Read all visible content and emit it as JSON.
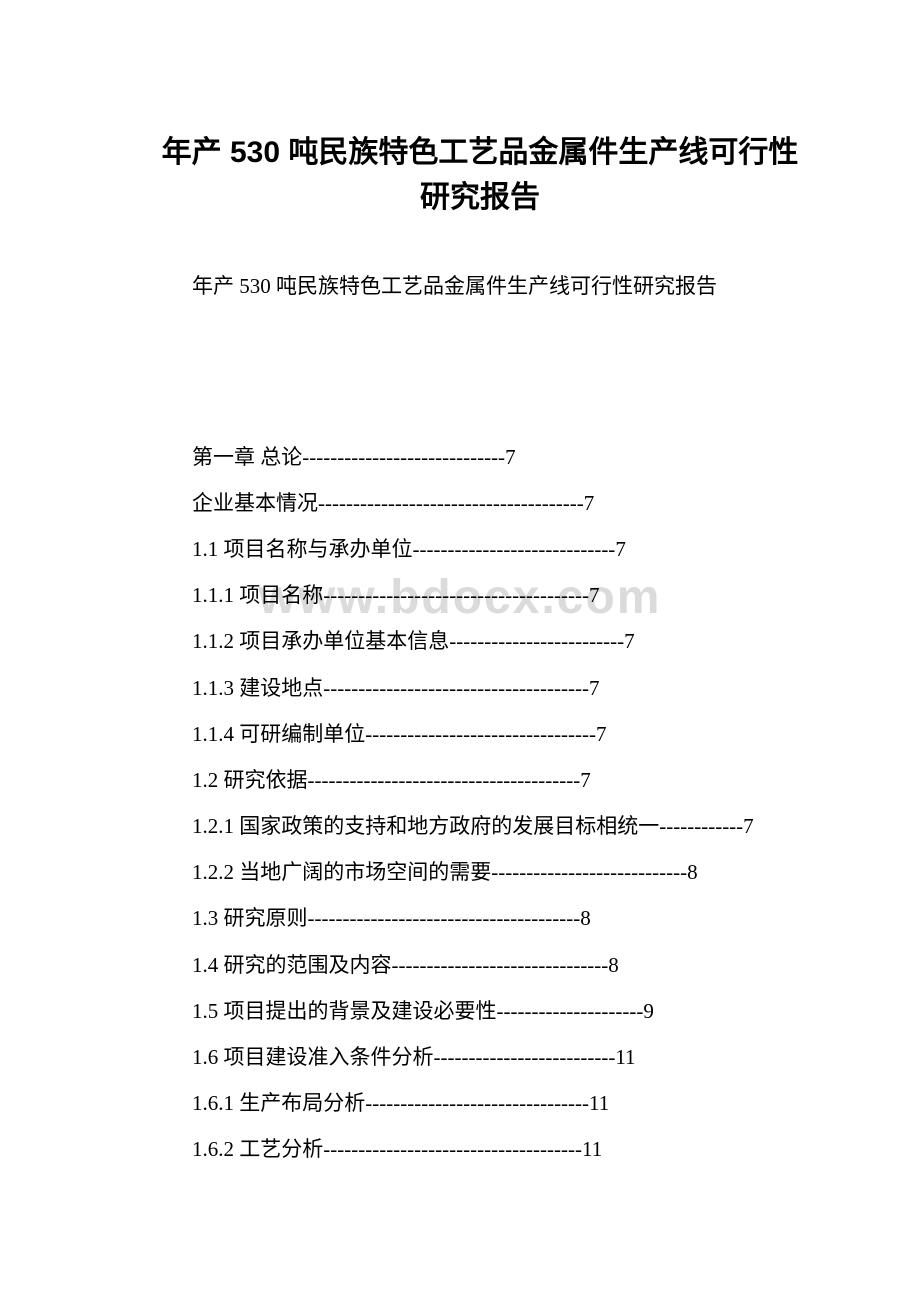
{
  "title": "年产 530 吨民族特色工艺品金属件生产线可行性研究报告",
  "subtitle": "年产 530 吨民族特色工艺品金属件生产线可行性研究报告",
  "watermark": "www.bdocx.com",
  "toc": [
    {
      "label": "第一章 总论",
      "dashes": "-----------------------------",
      "page": "7"
    },
    {
      "label": "企业基本情况",
      "dashes": "--------------------------------------",
      "page": "7"
    },
    {
      "label": "1.1 项目名称与承办单位",
      "dashes": "-----------------------------",
      "page": "7"
    },
    {
      "label": "1.1.1 项目名称",
      "dashes": "--------------------------------------",
      "page": "7"
    },
    {
      "label": "1.1.2 项目承办单位基本信息",
      "dashes": "-------------------------",
      "page": "7"
    },
    {
      "label": "1.1.3 建设地点",
      "dashes": "--------------------------------------",
      "page": "7"
    },
    {
      "label": "1.1.4 可研编制单位",
      "dashes": "---------------------------------",
      "page": "7"
    },
    {
      "label": "1.2 研究依据",
      "dashes": "---------------------------------------",
      "page": "7"
    },
    {
      "label": "1.2.1 国家政策的支持和地方政府的发展目标相统一",
      "dashes": "------------",
      "page": "7"
    },
    {
      "label": "1.2.2 当地广阔的市场空间的需要",
      "dashes": "----------------------------",
      "page": "8"
    },
    {
      "label": "1.3 研究原则",
      "dashes": "---------------------------------------",
      "page": "8"
    },
    {
      "label": "1.4 研究的范围及内容",
      "dashes": "-------------------------------",
      "page": "8"
    },
    {
      "label": "1.5 项目提出的背景及建设必要性",
      "dashes": "---------------------",
      "page": "9"
    },
    {
      "label": "1.6 项目建设准入条件分析",
      "dashes": "--------------------------",
      "page": "11"
    },
    {
      "label": "1.6.1 生产布局分析",
      "dashes": "--------------------------------",
      "page": "11"
    },
    {
      "label": "1.6.2 工艺分析",
      "dashes": "-------------------------------------",
      "page": "11"
    }
  ]
}
